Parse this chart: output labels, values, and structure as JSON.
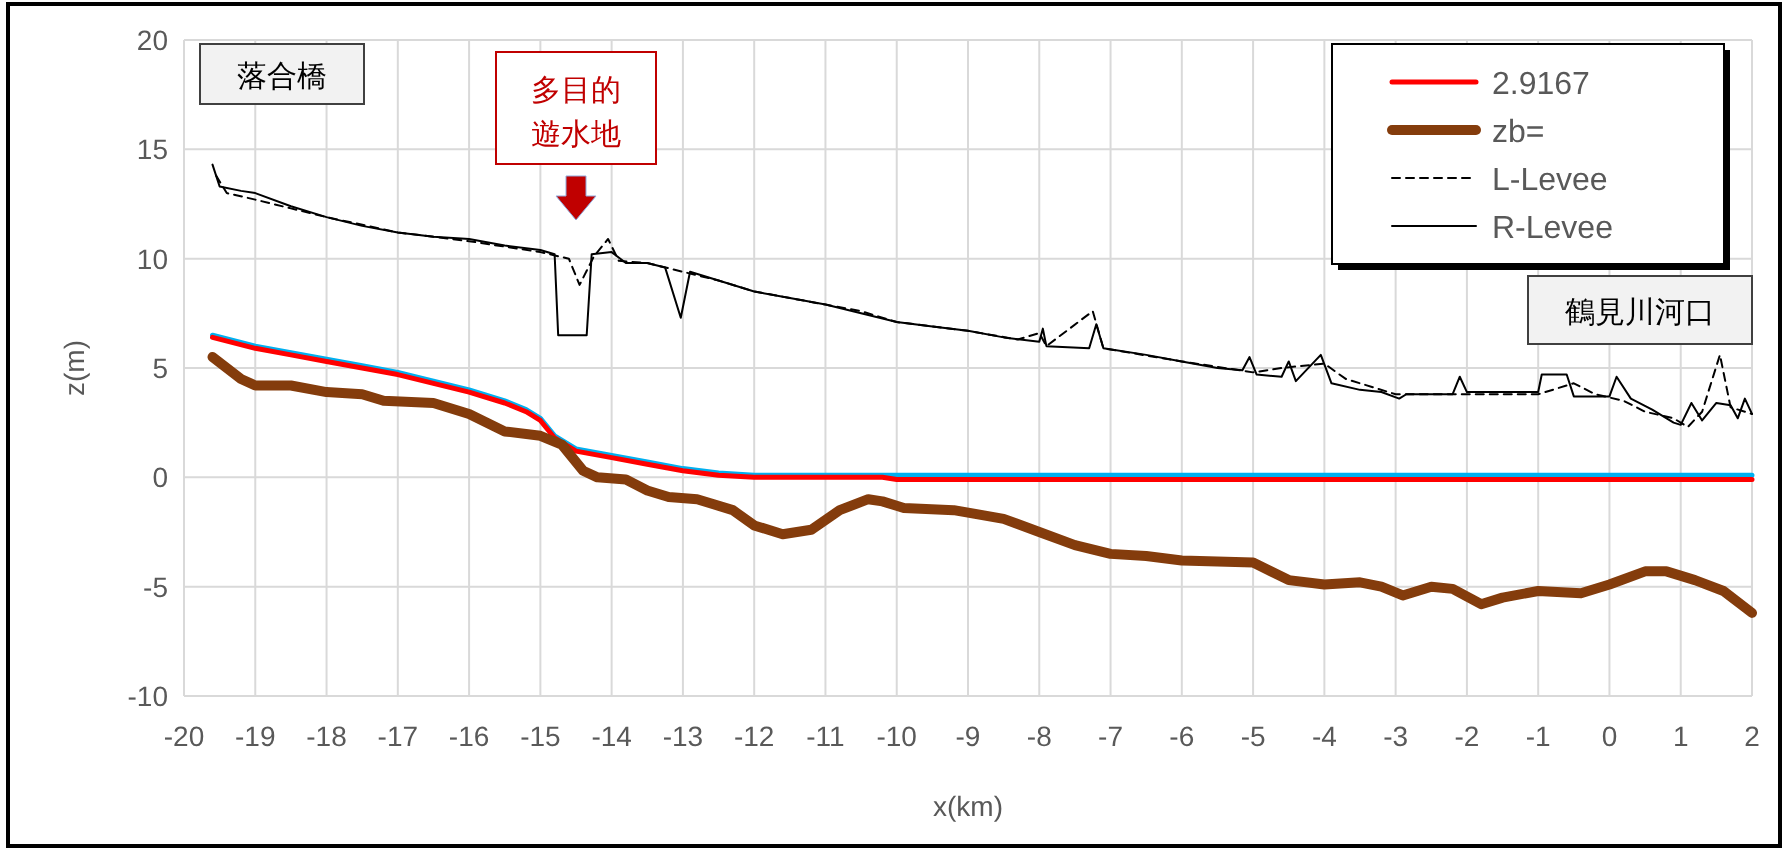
{
  "chart_data": {
    "type": "line",
    "xlabel": "x(km)",
    "ylabel": "z(m)",
    "xlim": [
      -20,
      2
    ],
    "xticks": [
      -20,
      -19,
      -18,
      -17,
      -16,
      -15,
      -14,
      -13,
      -12,
      -11,
      -10,
      -9,
      -8,
      -7,
      -6,
      -5,
      -4,
      -3,
      -2,
      -1,
      0,
      1,
      2
    ],
    "ylim": [
      -10,
      20
    ],
    "yticks": [
      -10,
      -5,
      0,
      5,
      10,
      15,
      20
    ],
    "grid": true,
    "legend": "top right",
    "marker": "none",
    "series": [
      {
        "color": "#00b0f0",
        "line_style": "solid",
        "x": [
          -19.6,
          -19,
          -18.5,
          -18,
          -17.5,
          -17,
          -16.5,
          -16,
          -15.5,
          -15.2,
          -15,
          -14.8,
          -14.5,
          -14,
          -13.5,
          -13,
          -12.5,
          -12,
          2
        ],
        "values": [
          6.5,
          6.0,
          5.7,
          5.4,
          5.1,
          4.8,
          4.4,
          4.0,
          3.5,
          3.1,
          2.7,
          1.9,
          1.3,
          1.0,
          0.7,
          0.4,
          0.2,
          0.1,
          0.1
        ]
      },
      {
        "name": "2.9167",
        "color": "#ff0000",
        "line_style": "solid",
        "x": [
          -19.6,
          -19,
          -18.5,
          -18,
          -17.5,
          -17,
          -16.5,
          -16,
          -15.5,
          -15.2,
          -15,
          -14.8,
          -14.5,
          -14,
          -13.5,
          -13,
          -12.5,
          -12,
          -10.2,
          -10,
          2
        ],
        "values": [
          6.4,
          5.9,
          5.6,
          5.3,
          5.0,
          4.7,
          4.3,
          3.9,
          3.4,
          3.0,
          2.6,
          1.8,
          1.2,
          0.9,
          0.6,
          0.3,
          0.1,
          0.0,
          0.0,
          -0.1,
          -0.1
        ]
      },
      {
        "name": "zb=",
        "color": "#843c0c",
        "line_style": "solid",
        "x": [
          -19.6,
          -19.2,
          -19,
          -18.5,
          -18,
          -17.5,
          -17.2,
          -16.5,
          -16,
          -15.5,
          -15,
          -14.7,
          -14.4,
          -14.2,
          -13.8,
          -13.5,
          -13.2,
          -12.8,
          -12.3,
          -12,
          -11.6,
          -11.2,
          -10.8,
          -10.4,
          -10.2,
          -9.9,
          -9.2,
          -8.5,
          -8,
          -7.5,
          -7,
          -6.5,
          -6,
          -5,
          -4.5,
          -4,
          -3.5,
          -3.2,
          -2.9,
          -2.5,
          -2.2,
          -1.8,
          -1.5,
          -1,
          -0.4,
          0,
          0.5,
          0.8,
          1.2,
          1.6,
          2
        ],
        "values": [
          5.5,
          4.5,
          4.2,
          4.2,
          3.9,
          3.8,
          3.5,
          3.4,
          2.9,
          2.1,
          1.9,
          1.5,
          0.3,
          0.0,
          -0.1,
          -0.6,
          -0.9,
          -1.0,
          -1.5,
          -2.2,
          -2.6,
          -2.4,
          -1.5,
          -1.0,
          -1.1,
          -1.4,
          -1.5,
          -1.9,
          -2.5,
          -3.1,
          -3.5,
          -3.6,
          -3.8,
          -3.9,
          -4.7,
          -4.9,
          -4.8,
          -5.0,
          -5.4,
          -5.0,
          -5.1,
          -5.8,
          -5.5,
          -5.2,
          -5.3,
          -4.9,
          -4.3,
          -4.3,
          -4.7,
          -5.2,
          -6.2
        ]
      },
      {
        "name": "L-Levee",
        "color": "#000000",
        "line_style": "dashed",
        "x": [
          -19.55,
          -19.4,
          -19,
          -18.5,
          -18,
          -17,
          -16,
          -15,
          -14.6,
          -14.45,
          -14.25,
          -14.05,
          -13.9,
          -13.5,
          -13,
          -12.5,
          -12,
          -11,
          -10.5,
          -10,
          -9,
          -8.3,
          -8,
          -7.9,
          -7.25,
          -7.1,
          -6,
          -5,
          -4.6,
          -4,
          -3.7,
          -3,
          -2,
          -1,
          -0.5,
          -0.2,
          0.2,
          0.5,
          0.9,
          1.1,
          1.3,
          1.55,
          1.7,
          2
        ],
        "values": [
          13.8,
          13.0,
          12.7,
          12.3,
          11.9,
          11.2,
          10.8,
          10.3,
          10.0,
          8.8,
          10.1,
          10.9,
          9.9,
          9.8,
          9.4,
          9.0,
          8.5,
          7.9,
          7.6,
          7.1,
          6.7,
          6.3,
          6.6,
          6.0,
          7.6,
          5.9,
          5.3,
          4.8,
          5.0,
          5.2,
          4.5,
          3.8,
          3.8,
          3.8,
          4.3,
          3.8,
          3.5,
          3.0,
          2.7,
          2.3,
          3.0,
          5.6,
          3.2,
          2.9
        ]
      },
      {
        "name": "R-Levee",
        "color": "#000000",
        "line_style": "solid",
        "x": [
          -19.6,
          -19.5,
          -19.2,
          -19,
          -18.5,
          -18,
          -17.5,
          -17,
          -16.5,
          -16,
          -15.5,
          -15,
          -14.8,
          -14.75,
          -14.35,
          -14.28,
          -14,
          -13.8,
          -13.5,
          -13.25,
          -13.03,
          -12.9,
          -12.5,
          -12,
          -11.5,
          -11,
          -10.5,
          -10,
          -9.5,
          -9,
          -8.5,
          -8,
          -7.95,
          -7.9,
          -7.3,
          -7.2,
          -7.1,
          -6.5,
          -6,
          -5.5,
          -5.15,
          -5.05,
          -4.95,
          -4.6,
          -4.5,
          -4.4,
          -4.05,
          -3.9,
          -3.5,
          -3.2,
          -2.95,
          -2.85,
          -2.2,
          -2.1,
          -2,
          -1,
          -0.95,
          -0.6,
          -0.5,
          0,
          0.1,
          0.3,
          0.6,
          0.9,
          1,
          1.15,
          1.3,
          1.5,
          1.7,
          1.8,
          1.9,
          2
        ],
        "values": [
          14.3,
          13.3,
          13.1,
          13.0,
          12.4,
          11.9,
          11.5,
          11.2,
          11.0,
          10.9,
          10.6,
          10.4,
          10.2,
          6.5,
          6.5,
          10.2,
          10.3,
          9.8,
          9.8,
          9.6,
          7.3,
          9.4,
          9.0,
          8.5,
          8.2,
          7.9,
          7.5,
          7.1,
          6.9,
          6.7,
          6.4,
          6.2,
          6.8,
          6.0,
          5.9,
          7.0,
          5.9,
          5.6,
          5.3,
          5.0,
          4.9,
          5.5,
          4.7,
          4.6,
          5.3,
          4.4,
          5.6,
          4.3,
          4.0,
          3.9,
          3.6,
          3.8,
          3.8,
          4.6,
          3.9,
          3.9,
          4.7,
          4.7,
          3.7,
          3.7,
          4.6,
          3.6,
          3.1,
          2.5,
          2.4,
          3.4,
          2.6,
          3.4,
          3.3,
          2.7,
          3.6,
          2.9
        ]
      }
    ],
    "annotations": [
      "落合橋",
      "多目的遊水地",
      "鶴見川河口"
    ]
  }
}
